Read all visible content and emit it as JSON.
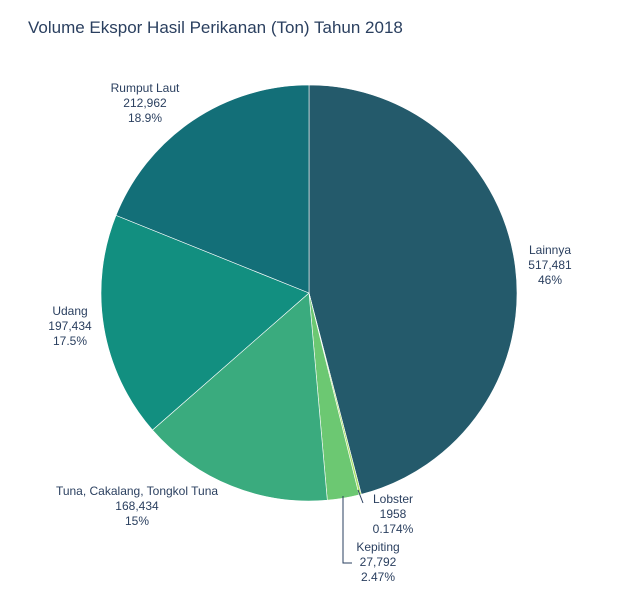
{
  "chart_data": {
    "type": "pie",
    "title": "Volume Ekspor Hasil Perikanan (Ton) Tahun 2018",
    "slices": [
      {
        "label": "Lainnya",
        "value": 517481,
        "value_text": "517,481",
        "percent_text": "46%",
        "color": "#245a6b"
      },
      {
        "label": "Lobster",
        "value": 1958,
        "value_text": "1958",
        "percent_text": "0.174%",
        "color": "#a7df66"
      },
      {
        "label": "Kepiting",
        "value": 27792,
        "value_text": "27,792",
        "percent_text": "2.47%",
        "color": "#6cc872"
      },
      {
        "label": "Tuna, Cakalang, Tongkol Tuna",
        "value": 168434,
        "value_text": "168,434",
        "percent_text": "15%",
        "color": "#3aab7e"
      },
      {
        "label": "Udang",
        "value": 197434,
        "value_text": "197,434",
        "percent_text": "17.5%",
        "color": "#128f80"
      },
      {
        "label": "Rumput Laut",
        "value": 212962,
        "value_text": "212,962",
        "percent_text": "18.9%",
        "color": "#136f78"
      }
    ],
    "start": "top",
    "direction": "clockwise",
    "legend": "none"
  }
}
